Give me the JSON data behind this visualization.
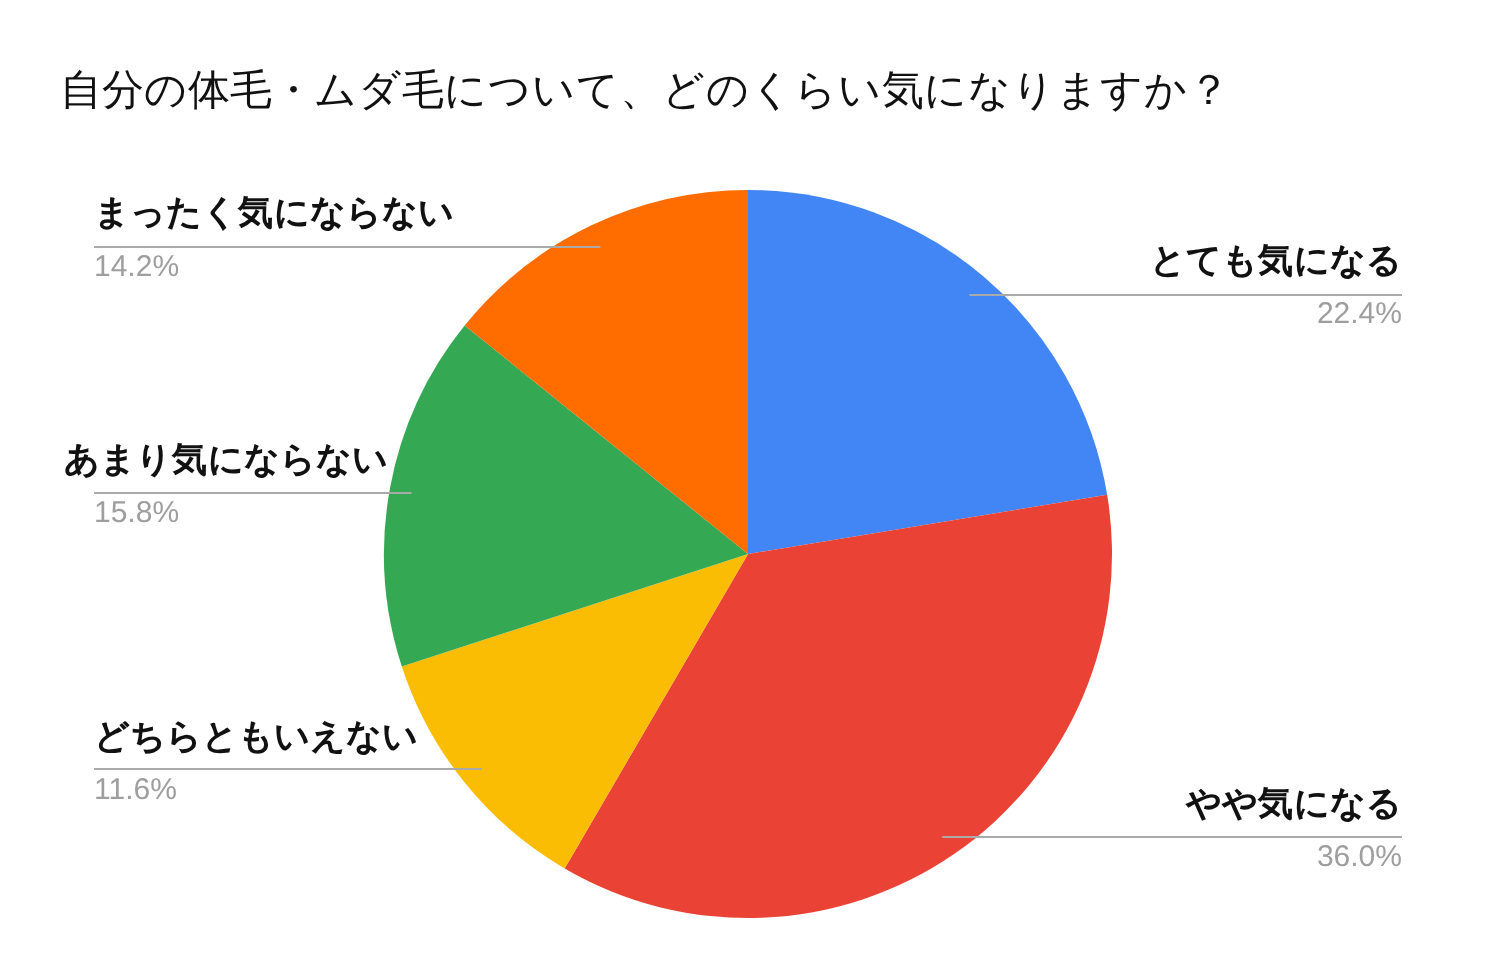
{
  "chart_data": {
    "type": "pie",
    "title": "自分の体毛・ムダ毛について、どのくらい気になりますか？",
    "categories": [
      "とても気になる",
      "やや気になる",
      "どちらともいえない",
      "あまり気にならない",
      "まったく気にならない"
    ],
    "values": [
      22.4,
      36.0,
      11.6,
      15.8,
      14.2
    ],
    "colors": [
      "#4285f4",
      "#ea4335",
      "#fbbc04",
      "#34a853",
      "#ff6d01"
    ],
    "value_labels": [
      "22.4%",
      "36.0%",
      "11.6%",
      "15.8%",
      "14.2%"
    ]
  }
}
